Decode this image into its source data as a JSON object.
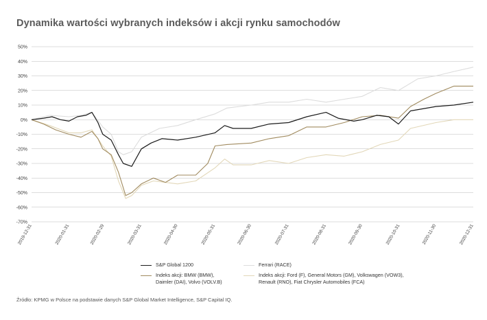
{
  "title": "Dynamika wartości wybranych indeksów i akcji rynku samochodów",
  "source_note": "Źródło: KPMG w Polsce na podstawie danych S&P Global Market Intelligence, S&P Capital IQ.",
  "colors": {
    "sp": "#1a1a1a",
    "bmw": "#a08a5e",
    "ferrari": "#dcdcdc",
    "ford": "#e2d7b8",
    "grid": "#bbbbbb",
    "axis_text": "#444444"
  },
  "legend": {
    "sp": "S&P Global 1200",
    "ferrari": "Ferrari (RACE)",
    "bmw": "Indeks akcji: BMW (BMW),\nDaimler (DAI), Volvo (VOLV.B)",
    "ford": "Indeks akcji: Ford (F), General Motors (GM), Volkswagen (VOW3),\nRenault (RNO), Fiat Chrysler Automobiles (FCA)"
  },
  "chart_data": {
    "type": "line",
    "title": "Dynamika wartości wybranych indeksów i akcji rynku samochodów",
    "y_ticks": [
      "50%",
      "40%",
      "30%",
      "20%",
      "10%",
      "0%",
      "-10%",
      "-20%",
      "-30%",
      "-40%",
      "-50%",
      "-60%",
      "-70%"
    ],
    "x_ticks": [
      "2019-12-31",
      "2020-01-31",
      "2020-02-29",
      "2020-03-31",
      "2020-04-30",
      "2020-05-31",
      "2020-06-30",
      "2020-07-31",
      "2020-08-31",
      "2020-09-30",
      "2020-10-31",
      "2020-11-30",
      "2020-12-31"
    ],
    "ylim": [
      -70,
      50
    ],
    "grid": true,
    "legend_position": "bottom",
    "series": [
      {
        "key": "sp",
        "name": "S&P Global 1200",
        "points": [
          [
            "2019-12-31",
            0
          ],
          [
            "2020-01-10",
            1
          ],
          [
            "2020-01-17",
            2
          ],
          [
            "2020-01-24",
            0
          ],
          [
            "2020-01-31",
            -1
          ],
          [
            "2020-02-07",
            2
          ],
          [
            "2020-02-14",
            3
          ],
          [
            "2020-02-19",
            5
          ],
          [
            "2020-02-24",
            -2
          ],
          [
            "2020-02-28",
            -10
          ],
          [
            "2020-03-06",
            -14
          ],
          [
            "2020-03-12",
            -24
          ],
          [
            "2020-03-16",
            -30
          ],
          [
            "2020-03-23",
            -32
          ],
          [
            "2020-03-31",
            -20
          ],
          [
            "2020-04-08",
            -16
          ],
          [
            "2020-04-17",
            -13
          ],
          [
            "2020-04-30",
            -14
          ],
          [
            "2020-05-15",
            -12
          ],
          [
            "2020-05-31",
            -9
          ],
          [
            "2020-06-08",
            -4
          ],
          [
            "2020-06-15",
            -6
          ],
          [
            "2020-06-30",
            -6
          ],
          [
            "2020-07-15",
            -3
          ],
          [
            "2020-07-31",
            -2
          ],
          [
            "2020-08-15",
            2
          ],
          [
            "2020-08-31",
            5
          ],
          [
            "2020-09-10",
            1
          ],
          [
            "2020-09-23",
            -1
          ],
          [
            "2020-09-30",
            0
          ],
          [
            "2020-10-12",
            3
          ],
          [
            "2020-10-22",
            2
          ],
          [
            "2020-10-30",
            -3
          ],
          [
            "2020-11-09",
            6
          ],
          [
            "2020-11-30",
            9
          ],
          [
            "2020-12-15",
            10
          ],
          [
            "2020-12-31",
            12
          ]
        ]
      },
      {
        "key": "ferrari",
        "name": "Ferrari (RACE)",
        "points": [
          [
            "2019-12-31",
            0
          ],
          [
            "2020-01-15",
            3
          ],
          [
            "2020-01-31",
            2
          ],
          [
            "2020-02-10",
            3
          ],
          [
            "2020-02-19",
            5
          ],
          [
            "2020-02-28",
            -5
          ],
          [
            "2020-03-06",
            -10
          ],
          [
            "2020-03-12",
            -22
          ],
          [
            "2020-03-16",
            -24
          ],
          [
            "2020-03-23",
            -22
          ],
          [
            "2020-03-31",
            -12
          ],
          [
            "2020-04-15",
            -6
          ],
          [
            "2020-04-30",
            -4
          ],
          [
            "2020-05-15",
            0
          ],
          [
            "2020-05-31",
            4
          ],
          [
            "2020-06-10",
            8
          ],
          [
            "2020-06-30",
            10
          ],
          [
            "2020-07-15",
            12
          ],
          [
            "2020-07-31",
            12
          ],
          [
            "2020-08-15",
            14
          ],
          [
            "2020-08-31",
            12
          ],
          [
            "2020-09-15",
            14
          ],
          [
            "2020-09-30",
            16
          ],
          [
            "2020-10-15",
            22
          ],
          [
            "2020-10-30",
            20
          ],
          [
            "2020-11-15",
            28
          ],
          [
            "2020-11-30",
            30
          ],
          [
            "2020-12-15",
            33
          ],
          [
            "2020-12-31",
            36
          ]
        ]
      },
      {
        "key": "bmw",
        "name": "Indeks akcji: BMW (BMW), Daimler (DAI), Volvo (VOLV.B)",
        "points": [
          [
            "2019-12-31",
            0
          ],
          [
            "2020-01-10",
            -3
          ],
          [
            "2020-01-20",
            -7
          ],
          [
            "2020-01-31",
            -10
          ],
          [
            "2020-02-10",
            -12
          ],
          [
            "2020-02-19",
            -8
          ],
          [
            "2020-02-24",
            -13
          ],
          [
            "2020-02-28",
            -20
          ],
          [
            "2020-03-06",
            -24
          ],
          [
            "2020-03-12",
            -36
          ],
          [
            "2020-03-18",
            -52
          ],
          [
            "2020-03-23",
            -50
          ],
          [
            "2020-03-31",
            -44
          ],
          [
            "2020-04-10",
            -40
          ],
          [
            "2020-04-20",
            -43
          ],
          [
            "2020-04-30",
            -38
          ],
          [
            "2020-05-15",
            -38
          ],
          [
            "2020-05-25",
            -30
          ],
          [
            "2020-05-31",
            -18
          ],
          [
            "2020-06-10",
            -17
          ],
          [
            "2020-06-30",
            -16
          ],
          [
            "2020-07-15",
            -13
          ],
          [
            "2020-07-31",
            -11
          ],
          [
            "2020-08-15",
            -5
          ],
          [
            "2020-08-31",
            -5
          ],
          [
            "2020-09-15",
            -2
          ],
          [
            "2020-09-30",
            2
          ],
          [
            "2020-10-15",
            3
          ],
          [
            "2020-10-30",
            1
          ],
          [
            "2020-11-09",
            9
          ],
          [
            "2020-11-20",
            14
          ],
          [
            "2020-11-30",
            18
          ],
          [
            "2020-12-15",
            23
          ],
          [
            "2020-12-31",
            23
          ]
        ]
      },
      {
        "key": "ford",
        "name": "Indeks akcji: Ford (F), General Motors (GM), Volkswagen (VOW3), Renault (RNO), Fiat Chrysler Automobiles (FCA)",
        "points": [
          [
            "2019-12-31",
            0
          ],
          [
            "2020-01-15",
            -4
          ],
          [
            "2020-01-31",
            -9
          ],
          [
            "2020-02-10",
            -9
          ],
          [
            "2020-02-19",
            -7
          ],
          [
            "2020-02-28",
            -18
          ],
          [
            "2020-03-06",
            -25
          ],
          [
            "2020-03-12",
            -42
          ],
          [
            "2020-03-18",
            -54
          ],
          [
            "2020-03-23",
            -52
          ],
          [
            "2020-03-31",
            -45
          ],
          [
            "2020-04-10",
            -42
          ],
          [
            "2020-04-30",
            -44
          ],
          [
            "2020-05-15",
            -42
          ],
          [
            "2020-05-31",
            -33
          ],
          [
            "2020-06-08",
            -27
          ],
          [
            "2020-06-15",
            -31
          ],
          [
            "2020-06-30",
            -31
          ],
          [
            "2020-07-15",
            -28
          ],
          [
            "2020-07-31",
            -30
          ],
          [
            "2020-08-15",
            -26
          ],
          [
            "2020-08-31",
            -24
          ],
          [
            "2020-09-15",
            -25
          ],
          [
            "2020-09-30",
            -22
          ],
          [
            "2020-10-15",
            -17
          ],
          [
            "2020-10-30",
            -14
          ],
          [
            "2020-11-09",
            -6
          ],
          [
            "2020-11-30",
            -2
          ],
          [
            "2020-12-15",
            0
          ],
          [
            "2020-12-31",
            0
          ]
        ]
      }
    ]
  }
}
